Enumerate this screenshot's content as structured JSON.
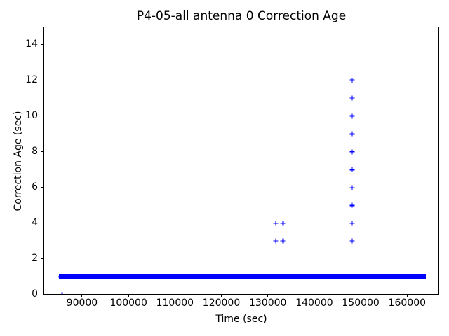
{
  "figure": {
    "background": "#ffffff",
    "frame_color": "#000000",
    "text_color": "#000000"
  },
  "chart_data": {
    "type": "scatter",
    "title": "P4-05-all antenna 0 Correction Age",
    "xlabel": "Time (sec)",
    "ylabel": "Correction Age (sec)",
    "xlim": [
      81700,
      166900
    ],
    "ylim": [
      0,
      15
    ],
    "x_ticks": [
      90000,
      100000,
      110000,
      120000,
      130000,
      140000,
      150000,
      160000
    ],
    "y_ticks": [
      0,
      2,
      4,
      6,
      8,
      10,
      12,
      14
    ],
    "grid": false,
    "legend_position": "none",
    "marker": "+",
    "marker_color": "#0000ff",
    "series": [
      {
        "name": "correction age",
        "dense_band": {
          "y": 1,
          "x_start": 85500,
          "x_end": 163450,
          "note": "continuous run of overlapping + markers at age 1 sec"
        },
        "points": [
          [
            85700,
            0
          ],
          [
            131700,
            3
          ],
          [
            133250,
            3
          ],
          [
            131700,
            4
          ],
          [
            133250,
            4
          ],
          [
            148150,
            3
          ],
          [
            148150,
            4
          ],
          [
            148150,
            5
          ],
          [
            148150,
            6
          ],
          [
            148150,
            7
          ],
          [
            148150,
            8
          ],
          [
            148150,
            9
          ],
          [
            148150,
            10
          ],
          [
            148150,
            11
          ],
          [
            148150,
            12
          ]
        ]
      }
    ]
  }
}
